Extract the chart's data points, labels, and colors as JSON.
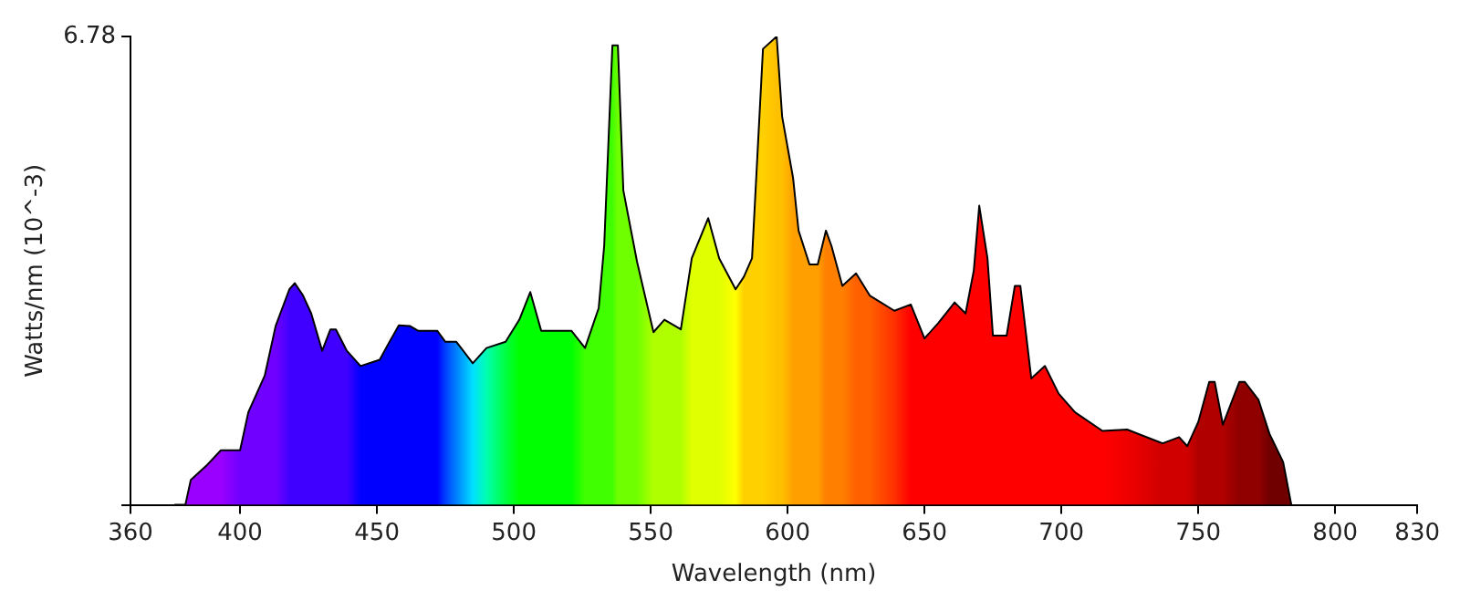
{
  "chart_data": {
    "type": "area",
    "xlabel": "Wavelength (nm)",
    "ylabel": "Watts/nm (10^-3)",
    "x": [
      376,
      380,
      382,
      388,
      393,
      400,
      403,
      409,
      413,
      418,
      420,
      423,
      426,
      430,
      433,
      435,
      439,
      444,
      451,
      454,
      458,
      462,
      465,
      472,
      475,
      479,
      485,
      490,
      497,
      502,
      506,
      510,
      521,
      526,
      531,
      533,
      536,
      538,
      540,
      545,
      551,
      555,
      561,
      565,
      571,
      575,
      581,
      584,
      587,
      591,
      596,
      598,
      602,
      604,
      608,
      611,
      614,
      616,
      620,
      625,
      630,
      639,
      645,
      650,
      655,
      661,
      665,
      668,
      670,
      673,
      675,
      680,
      683,
      685,
      689,
      694,
      699,
      705,
      715,
      724,
      737,
      743,
      746,
      750,
      754,
      756,
      759,
      765,
      767,
      772,
      776,
      781,
      784
    ],
    "series": [
      {
        "color": "#000000",
        "values": [
          0,
          0,
          0.36,
          0.58,
          0.79,
          0.79,
          1.34,
          1.87,
          2.59,
          3.12,
          3.21,
          3.03,
          2.77,
          2.23,
          2.54,
          2.54,
          2.23,
          2.01,
          2.1,
          2.32,
          2.6,
          2.59,
          2.52,
          2.52,
          2.36,
          2.36,
          2.05,
          2.27,
          2.36,
          2.68,
          3.08,
          2.52,
          2.52,
          2.27,
          2.85,
          3.75,
          6.65,
          6.65,
          4.55,
          3.52,
          2.5,
          2.68,
          2.54,
          3.57,
          4.15,
          3.57,
          3.12,
          3.3,
          3.57,
          6.6,
          6.78,
          5.62,
          4.73,
          3.97,
          3.48,
          3.48,
          3.97,
          3.75,
          3.17,
          3.35,
          3.03,
          2.81,
          2.9,
          2.41,
          2.63,
          2.93,
          2.77,
          3.39,
          4.33,
          3.57,
          2.45,
          2.45,
          3.17,
          3.17,
          1.83,
          2.01,
          1.61,
          1.34,
          1.07,
          1.09,
          0.89,
          0.98,
          0.85,
          1.2,
          1.78,
          1.78,
          1.16,
          1.78,
          1.78,
          1.52,
          1.03,
          0.62,
          0
        ],
        "colors": [
          "#9a00ff",
          "#9a00ff",
          "#9a00ff",
          "#9a00ff",
          "#9a00ff",
          "#7000ff",
          "#7000ff",
          "#7000ff",
          "#7000ff",
          "#4000ff",
          "#4000ff",
          "#4000ff",
          "#4000ff",
          "#4000ff",
          "#4000ff",
          "#4000ff",
          "#4000ff",
          "#0000ff",
          "#0000ff",
          "#0000ff",
          "#0000ff",
          "#0000ff",
          "#0000ff",
          "#0000ff",
          "#0040ff",
          "#0080ff",
          "#00e0ff",
          "#00ffb0",
          "#00ff40",
          "#00ff00",
          "#00ff00",
          "#00ff00",
          "#00ff00",
          "#40ff00",
          "#40ff00",
          "#40ff00",
          "#40ff00",
          "#70ff00",
          "#70ff00",
          "#70ff00",
          "#b0ff00",
          "#b0ff00",
          "#b0ff00",
          "#e0ff00",
          "#e0ff00",
          "#e0ff00",
          "#ffff00",
          "#ffd000",
          "#ffd000",
          "#ffd000",
          "#ffc000",
          "#ffc000",
          "#ffa000",
          "#ffa000",
          "#ffa000",
          "#ffa000",
          "#ff8000",
          "#ff8000",
          "#ff8000",
          "#ff6000",
          "#ff6000",
          "#ff3000",
          "#ff0000",
          "#ff0000",
          "#ff0000",
          "#ff0000",
          "#ff0000",
          "#ff0000",
          "#ff0000",
          "#ff0000",
          "#ff0000",
          "#ff0000",
          "#ff0000",
          "#ff0000",
          "#ff0000",
          "#ff0000",
          "#ff0000",
          "#ff0000",
          "#ff0000",
          "#f00000",
          "#d00000",
          "#d00000",
          "#d00000",
          "#b00000",
          "#b00000",
          "#b00000",
          "#b00000",
          "#900000",
          "#900000",
          "#900000",
          "#700000",
          "#700000",
          "#700000"
        ]
      }
    ],
    "xlim": [
      360,
      830
    ],
    "xticks": [
      360,
      400,
      450,
      500,
      550,
      600,
      650,
      700,
      750,
      800,
      830
    ],
    "ylim": [
      0,
      6.78
    ],
    "yticks": [
      {
        "value": 0,
        "label": null
      },
      6.78
    ],
    "grid": false,
    "legend": false
  }
}
